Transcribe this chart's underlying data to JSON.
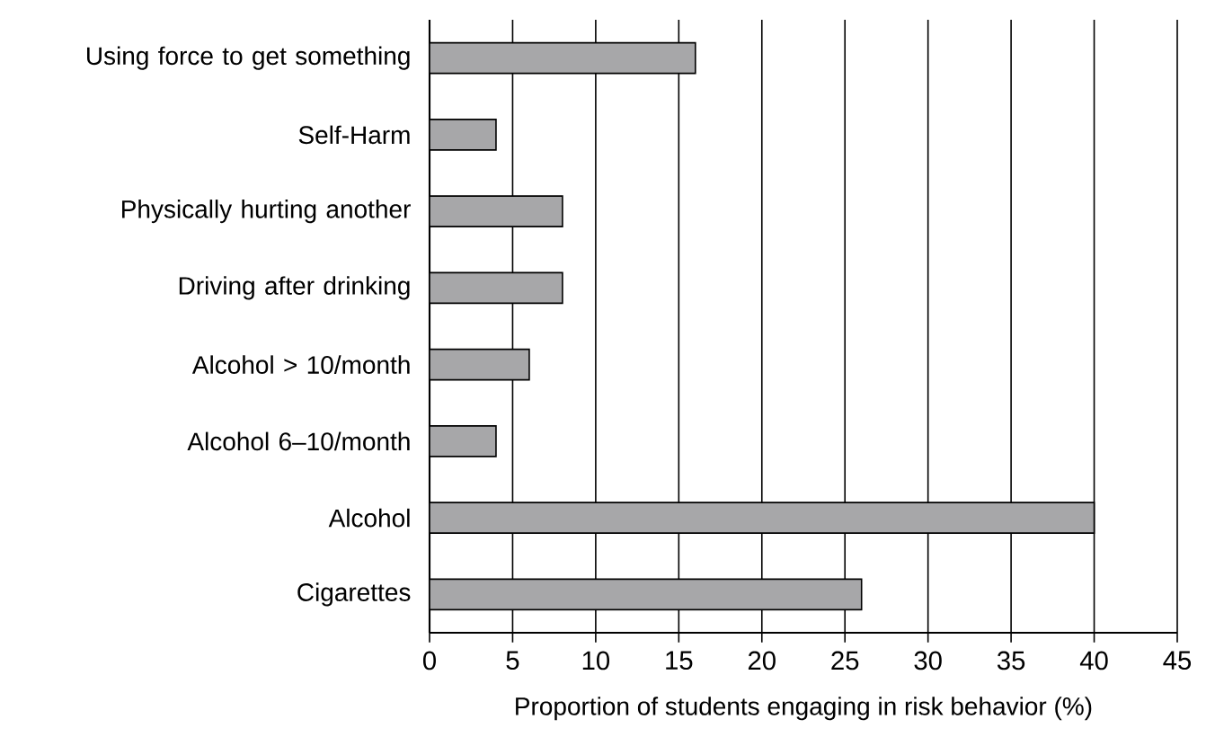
{
  "chart_data": {
    "type": "bar",
    "orientation": "horizontal",
    "xlabel": "Proportion of students engaging in risk behavior (%)",
    "categories": [
      "Using force to get something",
      "Self-Harm",
      "Physically hurting another",
      "Driving after drinking",
      "Alcohol > 10/month",
      "Alcohol 6–10/month",
      "Alcohol",
      "Cigarettes"
    ],
    "values": [
      16,
      4,
      8,
      8,
      6,
      4,
      40,
      26
    ],
    "color": "#a7a7a9",
    "xlim": [
      0,
      45
    ],
    "xticks": [
      0,
      5,
      10,
      15,
      20,
      25,
      30,
      35,
      40,
      45
    ],
    "grid": "x"
  }
}
